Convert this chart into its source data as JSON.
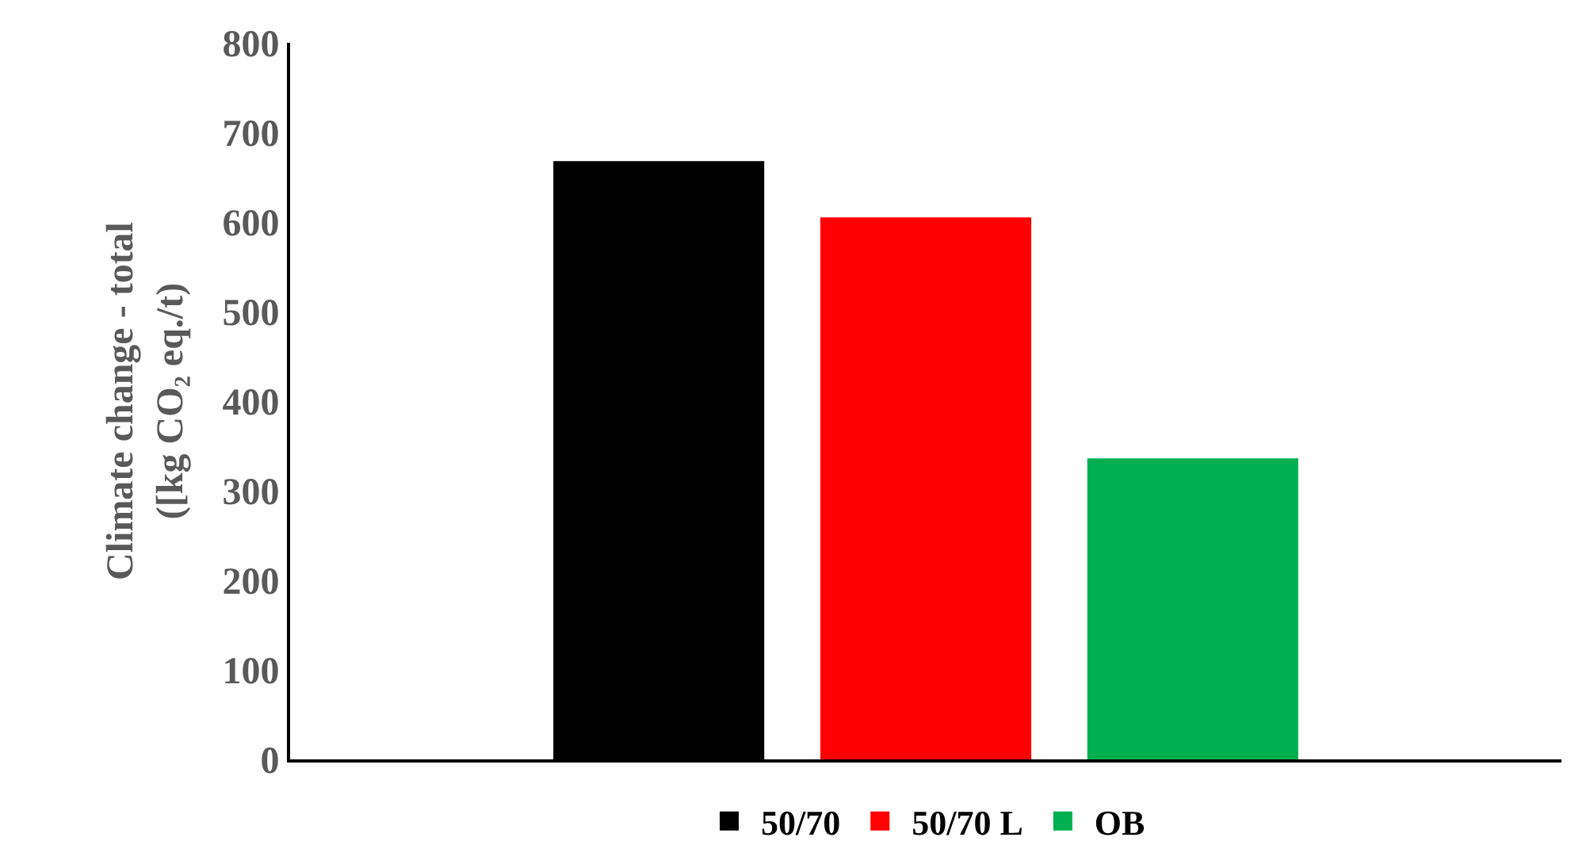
{
  "chart_data": {
    "type": "bar",
    "ylabel": "Climate change - total\n([kg CO₂ eq./t)",
    "categories": [
      null
    ],
    "series": [
      {
        "name": "50/70",
        "color": "#000000",
        "values": [
          668
        ]
      },
      {
        "name": "50/70 L",
        "color": "#ff0000",
        "values": [
          605
        ]
      },
      {
        "name": "OB",
        "color": "#00b050",
        "values": [
          336
        ]
      }
    ],
    "ylim": [
      0,
      800
    ],
    "yticks": [
      0,
      100,
      200,
      300,
      400,
      500,
      600,
      700,
      800
    ],
    "grid": false,
    "legend": "bottom"
  }
}
